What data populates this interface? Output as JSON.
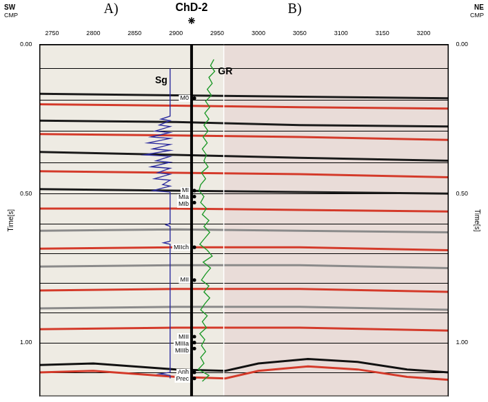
{
  "chart_data": {
    "type": "line",
    "well": "ChD-2",
    "panel_labels": [
      "A)",
      "B)"
    ],
    "panel_boundary_x": 2958,
    "left_label": "SW",
    "right_label": "NE",
    "x_label": "CMP",
    "y_label": "Time[s]",
    "xlim": [
      2735,
      3230
    ],
    "xticks": [
      2750,
      2800,
      2850,
      2900,
      2950,
      3000,
      3050,
      3100,
      3150,
      3200
    ],
    "ylim": [
      1.18,
      0
    ],
    "yticks": [
      {
        "value": 0,
        "label": "0.00"
      },
      {
        "value": 0.5,
        "label": "0.50"
      },
      {
        "value": 1,
        "label": "1.00"
      }
    ],
    "time_lines": [
      0.08,
      0.185,
      0.29,
      0.395,
      0.5,
      0.6,
      0.7,
      0.8,
      0.9,
      1.0,
      1.1
    ],
    "well_x": 2919,
    "horizons": [
      {
        "label": "M0",
        "time": 0.18
      },
      {
        "label": "MI",
        "time": 0.49
      },
      {
        "label": "MIa",
        "time": 0.51
      },
      {
        "label": "MIb",
        "time": 0.53
      },
      {
        "label": "MIIch",
        "time": 0.68
      },
      {
        "label": "MII",
        "time": 0.79
      },
      {
        "label": "MIII",
        "time": 0.98
      },
      {
        "label": "MIIIa",
        "time": 1.0
      },
      {
        "label": "MIIIb",
        "time": 1.02
      },
      {
        "label": "Anh",
        "time": 1.1
      },
      {
        "label": "Prec",
        "time": 1.12
      }
    ],
    "series": [
      {
        "name": "Sg",
        "color": "#2b2b9e",
        "x": [
          2893,
          2893,
          2893,
          2882,
          2893,
          2880,
          2893,
          2875,
          2893,
          2870,
          2893,
          2866,
          2893,
          2872,
          2893,
          2862,
          2893,
          2876,
          2893,
          2870,
          2893,
          2878,
          2893,
          2874,
          2893,
          2884,
          2893,
          2872,
          2893,
          2893,
          2888,
          2893,
          2893,
          2885,
          2893,
          2893,
          2880,
          2893,
          2893
        ],
        "y": [
          0.08,
          0.18,
          0.24,
          0.25,
          0.255,
          0.27,
          0.275,
          0.29,
          0.295,
          0.31,
          0.315,
          0.33,
          0.335,
          0.35,
          0.355,
          0.37,
          0.375,
          0.39,
          0.395,
          0.41,
          0.415,
          0.43,
          0.435,
          0.45,
          0.455,
          0.47,
          0.475,
          0.49,
          0.495,
          0.6,
          0.605,
          0.61,
          0.66,
          0.665,
          0.67,
          1.1,
          1.105,
          1.11,
          1.12
        ]
      },
      {
        "name": "GR",
        "color": "#1f9a2a",
        "x": [
          2946,
          2942,
          2947,
          2940,
          2944,
          2938,
          2943,
          2936,
          2941,
          2935,
          2940,
          2934,
          2939,
          2933,
          2938,
          2932,
          2937,
          2934,
          2939,
          2931,
          2936,
          2930,
          2928,
          2934,
          2930,
          2937,
          2932,
          2940,
          2934,
          2941,
          2935,
          2929,
          2938,
          2944,
          2933,
          2942,
          2936,
          2931,
          2940,
          2934,
          2941,
          2935,
          2930,
          2938,
          2932,
          2937,
          2929,
          2935,
          2931,
          2936,
          2930,
          2934,
          2927,
          2940,
          2932
        ],
        "y": [
          0.05,
          0.07,
          0.09,
          0.11,
          0.13,
          0.15,
          0.17,
          0.19,
          0.21,
          0.23,
          0.25,
          0.27,
          0.29,
          0.31,
          0.33,
          0.35,
          0.37,
          0.39,
          0.41,
          0.43,
          0.45,
          0.47,
          0.49,
          0.51,
          0.53,
          0.55,
          0.57,
          0.59,
          0.61,
          0.63,
          0.65,
          0.67,
          0.69,
          0.71,
          0.73,
          0.75,
          0.77,
          0.79,
          0.81,
          0.83,
          0.85,
          0.87,
          0.89,
          0.91,
          0.93,
          0.95,
          0.97,
          0.99,
          1.01,
          1.03,
          1.05,
          1.07,
          1.09,
          1.11,
          1.13
        ]
      }
    ],
    "reflectors": [
      {
        "color": "#1a1a1a",
        "x": [
          2735,
          2900,
          3050,
          3230
        ],
        "y": [
          0.165,
          0.17,
          0.175,
          0.18
        ]
      },
      {
        "color": "#d43a2a",
        "x": [
          2735,
          2900,
          3050,
          3230
        ],
        "y": [
          0.2,
          0.205,
          0.21,
          0.215
        ]
      },
      {
        "color": "#1a1a1a",
        "x": [
          2735,
          2900,
          3050,
          3230
        ],
        "y": [
          0.255,
          0.26,
          0.27,
          0.275
        ]
      },
      {
        "color": "#d43a2a",
        "x": [
          2735,
          2900,
          3050,
          3230
        ],
        "y": [
          0.3,
          0.305,
          0.31,
          0.32
        ]
      },
      {
        "color": "#1a1a1a",
        "x": [
          2735,
          2900,
          3050,
          3230
        ],
        "y": [
          0.36,
          0.37,
          0.38,
          0.39
        ]
      },
      {
        "color": "#d43a2a",
        "x": [
          2735,
          2900,
          3050,
          3230
        ],
        "y": [
          0.425,
          0.43,
          0.435,
          0.445
        ]
      },
      {
        "color": "#1a1a1a",
        "x": [
          2735,
          2900,
          3050,
          3230
        ],
        "y": [
          0.485,
          0.49,
          0.495,
          0.5
        ]
      },
      {
        "color": "#d43a2a",
        "x": [
          2735,
          2900,
          3050,
          3230
        ],
        "y": [
          0.55,
          0.55,
          0.555,
          0.56
        ]
      },
      {
        "color": "#8a8a8a",
        "x": [
          2735,
          2900,
          3050,
          3230
        ],
        "y": [
          0.625,
          0.62,
          0.625,
          0.63
        ]
      },
      {
        "color": "#d43a2a",
        "x": [
          2735,
          2900,
          3050,
          3230
        ],
        "y": [
          0.685,
          0.68,
          0.68,
          0.69
        ]
      },
      {
        "color": "#8a8a8a",
        "x": [
          2735,
          2900,
          3050,
          3230
        ],
        "y": [
          0.745,
          0.74,
          0.74,
          0.75
        ]
      },
      {
        "color": "#d43a2a",
        "x": [
          2735,
          2900,
          3050,
          3230
        ],
        "y": [
          0.825,
          0.82,
          0.82,
          0.83
        ]
      },
      {
        "color": "#8a8a8a",
        "x": [
          2735,
          2900,
          3050,
          3230
        ],
        "y": [
          0.885,
          0.88,
          0.88,
          0.89
        ]
      },
      {
        "color": "#d43a2a",
        "x": [
          2735,
          2900,
          3050,
          3230
        ],
        "y": [
          0.955,
          0.95,
          0.95,
          0.96
        ]
      },
      {
        "color": "#111111",
        "x": [
          2735,
          2800,
          2900,
          2960,
          3000,
          3060,
          3120,
          3180,
          3230
        ],
        "y": [
          1.075,
          1.07,
          1.09,
          1.095,
          1.07,
          1.055,
          1.065,
          1.09,
          1.1
        ]
      },
      {
        "color": "#d43a2a",
        "x": [
          2735,
          2800,
          2900,
          2960,
          3000,
          3060,
          3120,
          3180,
          3230
        ],
        "y": [
          1.1,
          1.095,
          1.115,
          1.12,
          1.095,
          1.08,
          1.09,
          1.115,
          1.125
        ]
      }
    ]
  }
}
